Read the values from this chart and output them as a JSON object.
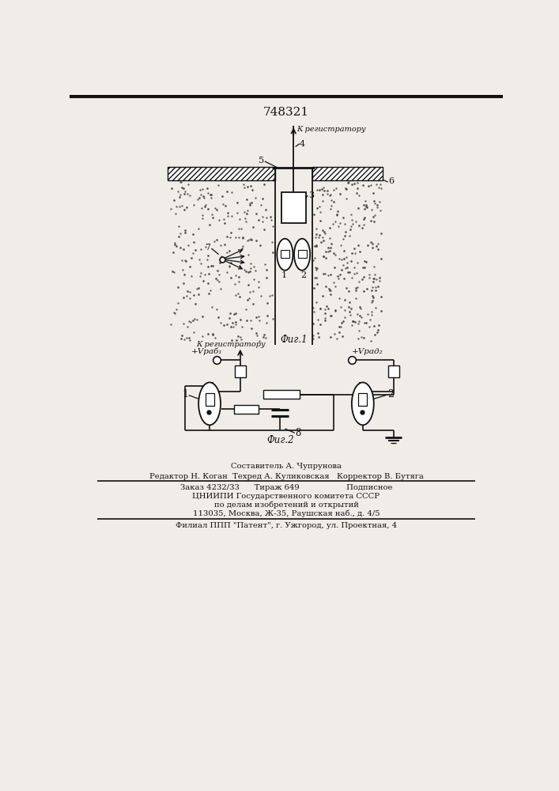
{
  "title": "748321",
  "fig1_caption": "Фиг.1",
  "fig2_caption": "Фиг.2",
  "label_k_reg1": "К регистратору",
  "label_k_reg2": "К регистратору",
  "label_vrab1": "+Vраб₁",
  "label_vrad2": "+Vрад₂",
  "footer_line1": "Составитель А. Чупрунова",
  "footer_line2": "Редактор Н. Коган  Техред А. Куликовская   Корректор В. Бутяга",
  "footer_line3": "Заказ 4232/33      Тираж 649                   Подписное",
  "footer_line4": "ЦНИИПИ Государственного комитета СССР",
  "footer_line5": "по делам изобретений и открытий",
  "footer_line6": "113035, Москва, Ж-35, Раушская наб., д. 4/5",
  "footer_line7": "Филиал ППП \"Патент\", г. Ужгород, ул. Проектная, 4",
  "bg_color": "#f0ede8",
  "line_color": "#111111"
}
